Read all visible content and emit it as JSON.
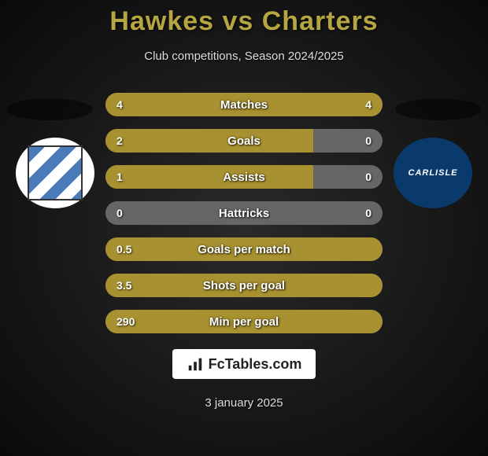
{
  "header": {
    "title": "Hawkes vs Charters",
    "subtitle": "Club competitions, Season 2024/2025"
  },
  "colors": {
    "accent": "#a89130",
    "neutral": "#666666",
    "title": "#b5a642",
    "logo_right_bg": "#0a3a6b"
  },
  "logos": {
    "left_alt": "Tranmere Rovers",
    "right_text": "CARLISLE"
  },
  "stats": [
    {
      "label": "Matches",
      "left_val": "4",
      "right_val": "4",
      "left_pct": 50,
      "right_pct": 50
    },
    {
      "label": "Goals",
      "left_val": "2",
      "right_val": "0",
      "left_pct": 75,
      "right_pct": 0
    },
    {
      "label": "Assists",
      "left_val": "1",
      "right_val": "0",
      "left_pct": 75,
      "right_pct": 0
    },
    {
      "label": "Hattricks",
      "left_val": "0",
      "right_val": "0",
      "left_pct": 0,
      "right_pct": 0
    },
    {
      "label": "Goals per match",
      "left_val": "0.5",
      "right_val": "",
      "left_pct": 100,
      "right_pct": 0
    },
    {
      "label": "Shots per goal",
      "left_val": "3.5",
      "right_val": "",
      "left_pct": 100,
      "right_pct": 0
    },
    {
      "label": "Min per goal",
      "left_val": "290",
      "right_val": "",
      "left_pct": 100,
      "right_pct": 0
    }
  ],
  "footer": {
    "brand": "FcTables.com",
    "date": "3 january 2025"
  }
}
